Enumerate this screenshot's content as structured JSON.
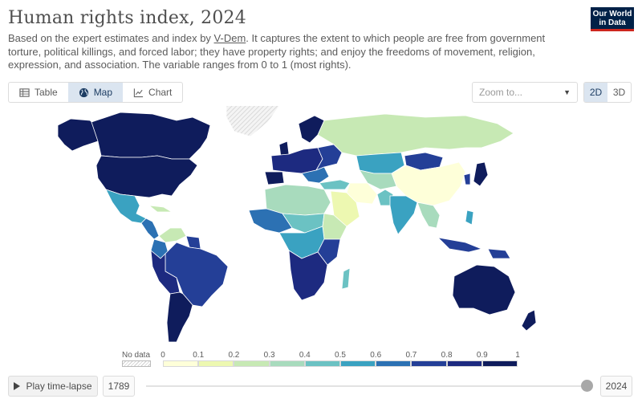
{
  "header": {
    "title": "Human rights index, 2024",
    "subtitle_pre": "Based on the expert estimates and index by ",
    "subtitle_link": "V-Dem",
    "subtitle_post": ". It captures the extent to which people are free from government torture, political killings, and forced labor; they have property rights; and enjoy the freedoms of movement, religion, expression, and association. The variable ranges from 0 to 1 (most rights).",
    "logo_line1": "Our World",
    "logo_line2": "in Data"
  },
  "tabs": [
    {
      "label": "Table",
      "icon": "table-icon",
      "active": false
    },
    {
      "label": "Map",
      "icon": "globe-icon",
      "active": true
    },
    {
      "label": "Chart",
      "icon": "line-chart-icon",
      "active": false
    }
  ],
  "zoom": {
    "placeholder": "Zoom to..."
  },
  "projection": {
    "options": [
      "2D",
      "3D"
    ],
    "selected": "2D"
  },
  "legend": {
    "nodata_label": "No data",
    "ticks": [
      "0",
      "0.1",
      "0.2",
      "0.3",
      "0.4",
      "0.5",
      "0.6",
      "0.7",
      "0.8",
      "0.9",
      "1"
    ],
    "colors": [
      "#feffd9",
      "#edf8b1",
      "#c7e9b4",
      "#a8dbbd",
      "#6bc2c3",
      "#3aa2c1",
      "#2c71b3",
      "#243f97",
      "#1d2a80",
      "#0f1c5c"
    ],
    "nodata_color": "#e6e6e6"
  },
  "timeline": {
    "play_label": "Play time-lapse",
    "start_year": "1789",
    "end_year": "2024",
    "position": 1.0
  },
  "map_colors": {
    "ocean": "#ffffff",
    "border": "#ffffff"
  }
}
